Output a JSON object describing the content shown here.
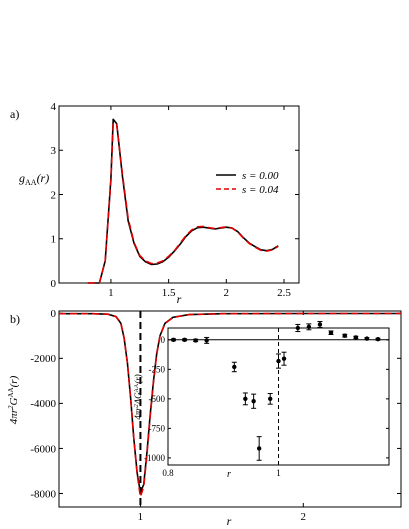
{
  "figure_labels": {
    "a": "a)",
    "b": "b)"
  },
  "chart_data": [
    {
      "type": "line",
      "id": "panel-a",
      "xlabel": "r",
      "ylabel": "g_AA(r)",
      "xlim": [
        0.55,
        2.63
      ],
      "ylim": [
        0,
        4
      ],
      "xticks": [
        1,
        1.5,
        2,
        2.5
      ],
      "xtick_labels": [
        "1",
        "1.5",
        "2",
        "2.5"
      ],
      "yticks": [
        0,
        1,
        2,
        3,
        4
      ],
      "ytick_labels": [
        "0",
        "1",
        "2",
        "3",
        "4"
      ],
      "legend": {
        "placement": "right",
        "entries": [
          "s = 0.00",
          "s = 0.04"
        ]
      },
      "series": [
        {
          "name": "s = 0.00",
          "color": "#000000",
          "dash": "solid",
          "x": [
            0.8,
            0.85,
            0.9,
            0.95,
            1.0,
            1.02,
            1.05,
            1.1,
            1.15,
            1.2,
            1.25,
            1.3,
            1.35,
            1.4,
            1.45,
            1.5,
            1.55,
            1.6,
            1.65,
            1.7,
            1.75,
            1.8,
            1.85,
            1.9,
            1.95,
            2.0,
            2.05,
            2.1,
            2.15,
            2.2,
            2.25,
            2.3,
            2.35,
            2.4,
            2.45
          ],
          "y": [
            0.0,
            0.0,
            0.0,
            0.5,
            2.35,
            3.7,
            3.6,
            2.4,
            1.4,
            0.9,
            0.6,
            0.48,
            0.42,
            0.43,
            0.48,
            0.58,
            0.72,
            0.88,
            1.05,
            1.18,
            1.25,
            1.26,
            1.24,
            1.22,
            1.24,
            1.26,
            1.24,
            1.16,
            1.02,
            0.9,
            0.82,
            0.75,
            0.73,
            0.76,
            0.84
          ]
        },
        {
          "name": "s = 0.04",
          "color": "#e00000",
          "dash": "dashed",
          "x": [
            0.8,
            0.85,
            0.9,
            0.95,
            1.0,
            1.02,
            1.05,
            1.1,
            1.15,
            1.2,
            1.25,
            1.3,
            1.35,
            1.4,
            1.45,
            1.5,
            1.55,
            1.6,
            1.65,
            1.7,
            1.75,
            1.8,
            1.85,
            1.9,
            1.95,
            2.0,
            2.05,
            2.1,
            2.15,
            2.2,
            2.25,
            2.3,
            2.35,
            2.4,
            2.45
          ],
          "y": [
            0.0,
            0.0,
            0.0,
            0.5,
            2.3,
            3.62,
            3.58,
            2.45,
            1.45,
            0.92,
            0.62,
            0.5,
            0.44,
            0.45,
            0.5,
            0.6,
            0.73,
            0.9,
            1.07,
            1.2,
            1.27,
            1.28,
            1.25,
            1.23,
            1.25,
            1.27,
            1.24,
            1.15,
            1.01,
            0.89,
            0.81,
            0.74,
            0.72,
            0.75,
            0.83
          ]
        }
      ]
    },
    {
      "type": "line",
      "id": "panel-b",
      "xlabel": "r",
      "ylabel": "4πr²G^AA(r)",
      "xlim": [
        0.5,
        2.6
      ],
      "ylim": [
        -8600,
        100
      ],
      "xticks": [
        1,
        2
      ],
      "xtick_labels": [
        "1",
        "2"
      ],
      "yticks": [
        0,
        -2000,
        -4000,
        -6000,
        -8000
      ],
      "ytick_labels": [
        "0",
        "-2000",
        "-4000",
        "-6000",
        "-8000"
      ],
      "vertical_reference": 1,
      "series": [
        {
          "name": "",
          "color": "#000000",
          "dash": "solid",
          "x": [
            0.5,
            0.7,
            0.8,
            0.85,
            0.88,
            0.9,
            0.92,
            0.94,
            0.96,
            0.98,
            1.0,
            1.02,
            1.04,
            1.06,
            1.08,
            1.1,
            1.12,
            1.15,
            1.2,
            1.3,
            1.5,
            2.0,
            2.6
          ],
          "y": [
            -20,
            -20,
            -40,
            -150,
            -450,
            -1100,
            -2200,
            -3800,
            -5600,
            -7100,
            -7950,
            -7600,
            -6200,
            -4500,
            -3000,
            -1800,
            -1000,
            -450,
            -180,
            -60,
            -20,
            -10,
            -10
          ]
        },
        {
          "name": "",
          "color": "#e00000",
          "dash": "dashed",
          "x": [
            0.5,
            0.7,
            0.8,
            0.85,
            0.88,
            0.9,
            0.92,
            0.94,
            0.96,
            0.98,
            1.0,
            1.02,
            1.04,
            1.06,
            1.08,
            1.1,
            1.12,
            1.15,
            1.2,
            1.3,
            1.5,
            2.0,
            2.6
          ],
          "y": [
            -20,
            -20,
            -40,
            -150,
            -450,
            -1100,
            -2200,
            -3800,
            -5600,
            -7150,
            -8150,
            -7700,
            -6300,
            -4550,
            -3050,
            -1820,
            -1010,
            -460,
            -185,
            -62,
            -20,
            -10,
            -10
          ]
        }
      ]
    },
    {
      "type": "scatter",
      "id": "panel-b-inset",
      "xlabel": "r",
      "ylabel": "4πr²ΔG^AA(r)",
      "xlim": [
        0.8,
        1.2
      ],
      "ylim": [
        -1060,
        100
      ],
      "xticks": [
        0.8,
        1
      ],
      "xtick_labels": [
        "0.8",
        "1"
      ],
      "yticks": [
        0,
        -250,
        -500,
        -750,
        -1000
      ],
      "ytick_labels": [
        "0",
        "-250",
        "-500",
        "-750",
        "-1000"
      ],
      "vertical_reference": 1,
      "points": [
        {
          "x": 0.81,
          "y": 0,
          "err": 8
        },
        {
          "x": 0.83,
          "y": 0,
          "err": 8
        },
        {
          "x": 0.85,
          "y": -5,
          "err": 10
        },
        {
          "x": 0.87,
          "y": -5,
          "err": 25
        },
        {
          "x": 0.92,
          "y": -230,
          "err": 40
        },
        {
          "x": 0.94,
          "y": -500,
          "err": 50
        },
        {
          "x": 0.955,
          "y": -520,
          "err": 60
        },
        {
          "x": 0.965,
          "y": -920,
          "err": 100
        },
        {
          "x": 0.985,
          "y": -500,
          "err": 45
        },
        {
          "x": 1.0,
          "y": -180,
          "err": 60
        },
        {
          "x": 1.01,
          "y": -160,
          "err": 55
        },
        {
          "x": 1.035,
          "y": 100,
          "err": 30
        },
        {
          "x": 1.055,
          "y": 110,
          "err": 25
        },
        {
          "x": 1.075,
          "y": 130,
          "err": 25
        },
        {
          "x": 1.095,
          "y": 60,
          "err": 15
        },
        {
          "x": 1.12,
          "y": 35,
          "err": 12
        },
        {
          "x": 1.14,
          "y": 20,
          "err": 10
        },
        {
          "x": 1.16,
          "y": 10,
          "err": 8
        },
        {
          "x": 1.18,
          "y": 5,
          "err": 8
        }
      ]
    }
  ]
}
